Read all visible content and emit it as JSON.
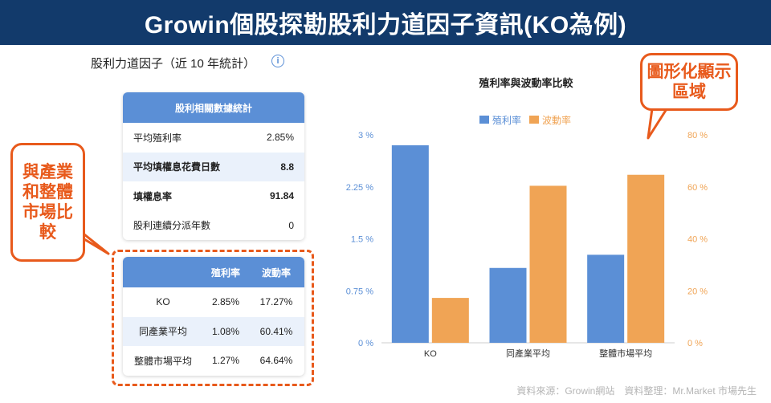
{
  "banner": {
    "title": "Growin個股探勘股利力道因子資訊(KO為例)"
  },
  "section": {
    "title": "股利力道因子（近 10 年統計）",
    "info_icon": "i"
  },
  "stats_card": {
    "header": "股利相關數據統計",
    "rows": [
      {
        "label": "平均殖利率",
        "value": "2.85%"
      },
      {
        "label": "平均填權息花費日數",
        "value": "8.8"
      },
      {
        "label": "填權息率",
        "value": "91.84"
      },
      {
        "label": "股利連續分派年數",
        "value": "0"
      }
    ]
  },
  "compare_table": {
    "headers": [
      "",
      "殖利率",
      "波動率"
    ],
    "rows": [
      {
        "name": "KO",
        "yield": "2.85%",
        "volatility": "17.27%"
      },
      {
        "name": "同產業平均",
        "yield": "1.08%",
        "volatility": "60.41%"
      },
      {
        "name": "整體市場平均",
        "yield": "1.27%",
        "volatility": "64.64%"
      }
    ]
  },
  "callouts": {
    "left": "與產業和整體市場比較",
    "right": "圖形化顯示區域"
  },
  "footer": {
    "text": "資料來源：Growin網站　資料整理：Mr.Market 市場先生"
  },
  "colors": {
    "banner": "#123a6b",
    "blue": "#5b8fd6",
    "orange": "#f0a455",
    "accent": "#e85a1c"
  },
  "chart_data": {
    "type": "bar",
    "title": "殖利率與波動率比較",
    "categories": [
      "KO",
      "同產業平均",
      "整體市場平均"
    ],
    "series": [
      {
        "name": "殖利率",
        "values": [
          2.85,
          1.08,
          1.27
        ],
        "axis": "left",
        "color": "#5b8fd6"
      },
      {
        "name": "波動率",
        "values": [
          17.27,
          60.41,
          64.64
        ],
        "axis": "right",
        "color": "#f0a455"
      }
    ],
    "y_left": {
      "ticks": [
        0,
        0.75,
        1.5,
        2.25,
        3
      ],
      "tick_labels": [
        "0 %",
        "0.75 %",
        "1.5 %",
        "2.25 %",
        "3 %"
      ],
      "range": [
        0,
        3
      ]
    },
    "y_right": {
      "ticks": [
        0,
        20,
        40,
        60,
        80
      ],
      "tick_labels": [
        "0 %",
        "20 %",
        "40 %",
        "60 %",
        "80 %"
      ],
      "range": [
        0,
        80
      ]
    },
    "legend": "top-center",
    "grid": false
  }
}
